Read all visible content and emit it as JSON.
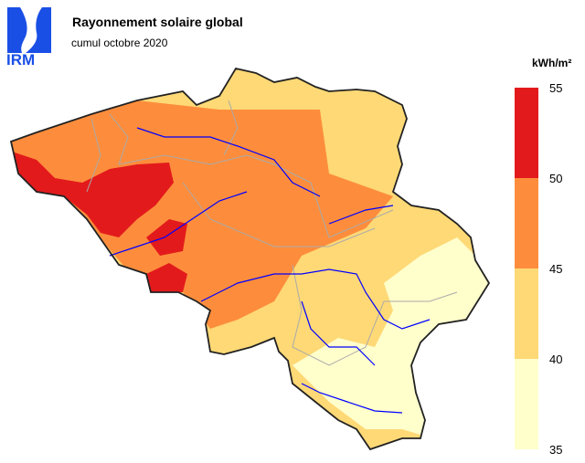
{
  "logo": {
    "text": "IRM",
    "color": "#1a4fe6"
  },
  "title": "Rayonnement solaire global",
  "subtitle": "cumul octobre 2020",
  "legend": {
    "unit": "kWh/m²",
    "ticks": [
      "55",
      "50",
      "45",
      "40",
      "35"
    ],
    "bins": [
      {
        "range": "50-55",
        "color": "#e31a1c"
      },
      {
        "range": "45-50",
        "color": "#fd8d3c"
      },
      {
        "range": "40-45",
        "color": "#fed976"
      },
      {
        "range": "35-40",
        "color": "#ffffcc"
      }
    ]
  },
  "colors": {
    "border": "#222222",
    "rivers": "#0000ff",
    "provinces": "#aaaaaa"
  }
}
